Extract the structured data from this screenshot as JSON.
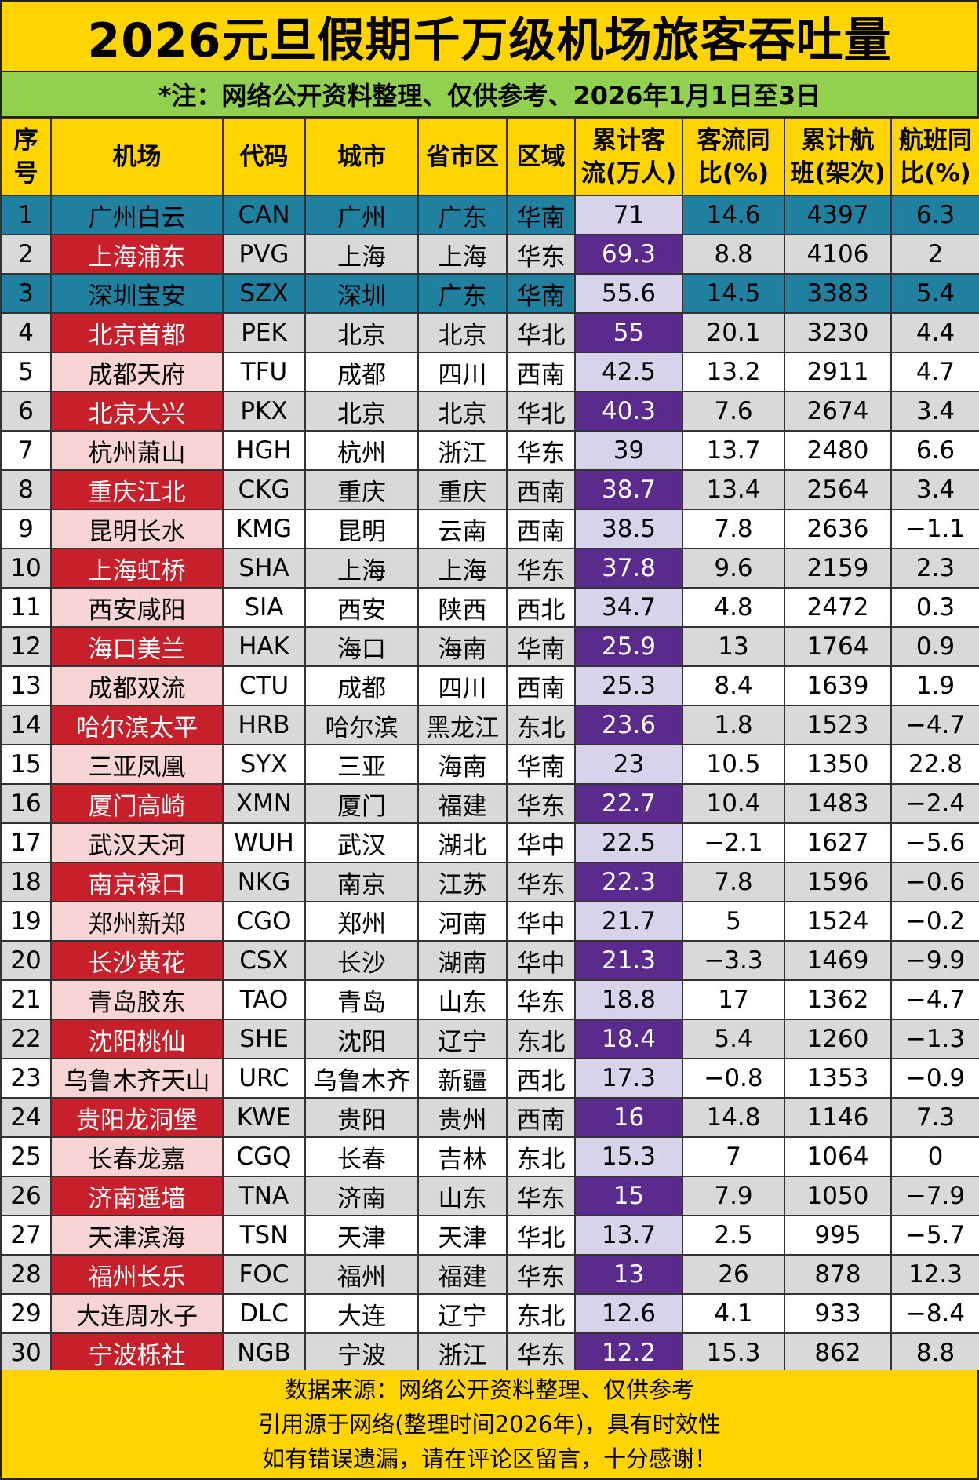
{
  "title": "2026元旦假期千万级机场旅客吞吐量",
  "note": "*注：网络公开资料整理、仅供参考、2026年1月1日至3日",
  "headers": [
    [
      "序",
      "号"
    ],
    [
      "机场"
    ],
    [
      "代码"
    ],
    [
      "城市"
    ],
    [
      "省市区"
    ],
    [
      "区域"
    ],
    [
      "累计客",
      "流(万人)"
    ],
    [
      "客流同",
      "比(%)"
    ],
    [
      "累计航",
      "班(架次)"
    ],
    [
      "航班同",
      "比(%)"
    ]
  ],
  "rows": [
    [
      "1",
      "广州白云",
      "CAN",
      "广州",
      "广东",
      "华南",
      "71",
      "14.6",
      "4397",
      "6.3"
    ],
    [
      "2",
      "上海浦东",
      "PVG",
      "上海",
      "上海",
      "华东",
      "69.3",
      "8.8",
      "4106",
      "2"
    ],
    [
      "3",
      "深圳宝安",
      "SZX",
      "深圳",
      "广东",
      "华南",
      "55.6",
      "14.5",
      "3383",
      "5.4"
    ],
    [
      "4",
      "北京首都",
      "PEK",
      "北京",
      "北京",
      "华北",
      "55",
      "20.1",
      "3230",
      "4.4"
    ],
    [
      "5",
      "成都天府",
      "TFU",
      "成都",
      "四川",
      "西南",
      "42.5",
      "13.2",
      "2911",
      "4.7"
    ],
    [
      "6",
      "北京大兴",
      "PKX",
      "北京",
      "北京",
      "华北",
      "40.3",
      "7.6",
      "2674",
      "3.4"
    ],
    [
      "7",
      "杭州萧山",
      "HGH",
      "杭州",
      "浙江",
      "华东",
      "39",
      "13.7",
      "2480",
      "6.6"
    ],
    [
      "8",
      "重庆江北",
      "CKG",
      "重庆",
      "重庆",
      "西南",
      "38.7",
      "13.4",
      "2564",
      "3.4"
    ],
    [
      "9",
      "昆明长水",
      "KMG",
      "昆明",
      "云南",
      "西南",
      "38.5",
      "7.8",
      "2636",
      "−1.1"
    ],
    [
      "10",
      "上海虹桥",
      "SHA",
      "上海",
      "上海",
      "华东",
      "37.8",
      "9.6",
      "2159",
      "2.3"
    ],
    [
      "11",
      "西安咸阳",
      "SIA",
      "西安",
      "陕西",
      "西北",
      "34.7",
      "4.8",
      "2472",
      "0.3"
    ],
    [
      "12",
      "海口美兰",
      "HAK",
      "海口",
      "海南",
      "华南",
      "25.9",
      "13",
      "1764",
      "0.9"
    ],
    [
      "13",
      "成都双流",
      "CTU",
      "成都",
      "四川",
      "西南",
      "25.3",
      "8.4",
      "1639",
      "1.9"
    ],
    [
      "14",
      "哈尔滨太平",
      "HRB",
      "哈尔滨",
      "黑龙江",
      "东北",
      "23.6",
      "1.8",
      "1523",
      "−4.7"
    ],
    [
      "15",
      "三亚凤凰",
      "SYX",
      "三亚",
      "海南",
      "华南",
      "23",
      "10.5",
      "1350",
      "22.8"
    ],
    [
      "16",
      "厦门高崎",
      "XMN",
      "厦门",
      "福建",
      "华东",
      "22.7",
      "10.4",
      "1483",
      "−2.4"
    ],
    [
      "17",
      "武汉天河",
      "WUH",
      "武汉",
      "湖北",
      "华中",
      "22.5",
      "−2.1",
      "1627",
      "−5.6"
    ],
    [
      "18",
      "南京禄口",
      "NKG",
      "南京",
      "江苏",
      "华东",
      "22.3",
      "7.8",
      "1596",
      "−0.6"
    ],
    [
      "19",
      "郑州新郑",
      "CGO",
      "郑州",
      "河南",
      "华中",
      "21.7",
      "5",
      "1524",
      "−0.2"
    ],
    [
      "20",
      "长沙黄花",
      "CSX",
      "长沙",
      "湖南",
      "华中",
      "21.3",
      "−3.3",
      "1469",
      "−9.9"
    ],
    [
      "21",
      "青岛胶东",
      "TAO",
      "青岛",
      "山东",
      "华东",
      "18.8",
      "17",
      "1362",
      "−4.7"
    ],
    [
      "22",
      "沈阳桃仙",
      "SHE",
      "沈阳",
      "辽宁",
      "东北",
      "18.4",
      "5.4",
      "1260",
      "−1.3"
    ],
    [
      "23",
      "乌鲁木齐天山",
      "URC",
      "乌鲁木齐",
      "新疆",
      "西北",
      "17.3",
      "−0.8",
      "1353",
      "−0.9"
    ],
    [
      "24",
      "贵阳龙洞堡",
      "KWE",
      "贵阳",
      "贵州",
      "西南",
      "16",
      "14.8",
      "1146",
      "7.3"
    ],
    [
      "25",
      "长春龙嘉",
      "CGQ",
      "长春",
      "吉林",
      "东北",
      "15.3",
      "7",
      "1064",
      "0"
    ],
    [
      "26",
      "济南遥墙",
      "TNA",
      "济南",
      "山东",
      "华东",
      "15",
      "7.9",
      "1050",
      "−7.9"
    ],
    [
      "27",
      "天津滨海",
      "TSN",
      "天津",
      "天津",
      "华北",
      "13.7",
      "2.5",
      "995",
      "−5.7"
    ],
    [
      "28",
      "福州长乐",
      "FOC",
      "福州",
      "福建",
      "华东",
      "13",
      "26",
      "878",
      "12.3"
    ],
    [
      "29",
      "大连周水子",
      "DLC",
      "大连",
      "辽宁",
      "东北",
      "12.6",
      "4.1",
      "933",
      "−8.4"
    ],
    [
      "30",
      "宁波栎社",
      "NGB",
      "宁波",
      "浙江",
      "华东",
      "12.2",
      "15.3",
      "862",
      "8.8"
    ]
  ],
  "footer": [
    "数据来源：网络公开资料整理、仅供参考",
    "引用源于网络(整理时间2026年)，具有时效性",
    "如有错误遗漏，请在评论区留言，十分感谢！"
  ],
  "colors": {
    "header_yellow": "#ffd400",
    "note_green": "#92d050",
    "top_row_blue": "#2080a0",
    "name_red": "#c8202a",
    "name_pink": "#f8d4d4",
    "pax_purple": "#5a2a8c",
    "pax_lavender": "#d8d2ea"
  }
}
